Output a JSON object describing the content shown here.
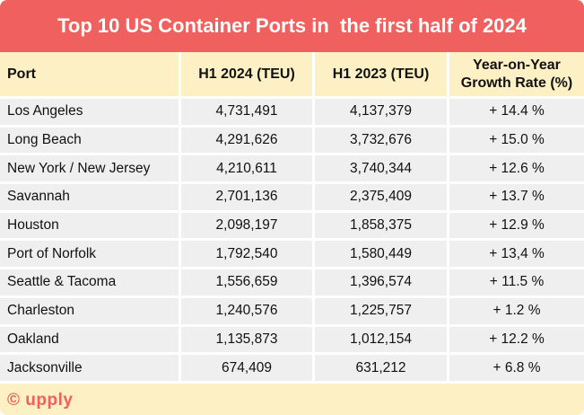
{
  "title": "Top 10 US Container Ports in  the first half of 2024",
  "columns": [
    "Port",
    "H1 2024 (TEU)",
    "H1 2023 (TEU)",
    "Year-on-Year Growth Rate (%)"
  ],
  "rows": [
    {
      "port": "Los Angeles",
      "h1_2024": "4,731,491",
      "h1_2023": "4,137,379",
      "growth": "+ 14.4 %"
    },
    {
      "port": "Long Beach",
      "h1_2024": "4,291,626",
      "h1_2023": "3,732,676",
      "growth": "+ 15.0 %"
    },
    {
      "port": "New York / New Jersey",
      "h1_2024": "4,210,611",
      "h1_2023": "3,740,344",
      "growth": "+ 12.6 %"
    },
    {
      "port": "Savannah",
      "h1_2024": "2,701,136",
      "h1_2023": "2,375,409",
      "growth": "+ 13.7 %"
    },
    {
      "port": "Houston",
      "h1_2024": "2,098,197",
      "h1_2023": "1,858,375",
      "growth": "+ 12.9 %"
    },
    {
      "port": "Port of Norfolk",
      "h1_2024": "1,792,540",
      "h1_2023": "1,580,449",
      "growth": "+ 13,4 %"
    },
    {
      "port": "Seattle & Tacoma",
      "h1_2024": "1,556,659",
      "h1_2023": "1,396,574",
      "growth": "+ 11.5 %"
    },
    {
      "port": "Charleston",
      "h1_2024": "1,240,576",
      "h1_2023": "1,225,757",
      "growth": "+ 1.2 %"
    },
    {
      "port": "Oakland",
      "h1_2024": "1,135,873",
      "h1_2023": "1,012,154",
      "growth": "+ 12.2 %"
    },
    {
      "port": "Jacksonville",
      "h1_2024": "674,409",
      "h1_2023": "631,212",
      "growth": "+ 6.8 %"
    }
  ],
  "footer": {
    "logo": "© upply"
  },
  "colors": {
    "accent": "#f0605e",
    "header_bg": "#fdf0c4",
    "row_bg": "#efefef"
  }
}
